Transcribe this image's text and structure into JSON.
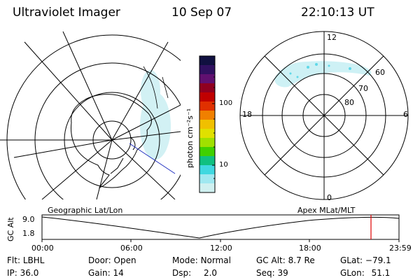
{
  "header": {
    "instrument": "Ultraviolet Imager",
    "date": "10 Sep 07",
    "time": "22:10:13 UT"
  },
  "colorbar": {
    "unit_label": "photon cm⁻²s⁻¹",
    "ticks": [
      "100",
      "10"
    ],
    "colors": [
      "#101040",
      "#301060",
      "#601070",
      "#900020",
      "#c00000",
      "#e03000",
      "#f08000",
      "#f0c000",
      "#e0e000",
      "#a0e000",
      "#40d000",
      "#10c080",
      "#40d8e0",
      "#a0e8f0",
      "#d0f0f0"
    ]
  },
  "right_map": {
    "lat_labels": [
      "60",
      "70",
      "80"
    ],
    "mlt_labels": [
      "12",
      "18",
      "6",
      "0"
    ]
  },
  "timeline": {
    "left_label": "Geographic Lat/Lon",
    "right_label": "Apex MLat/MLT",
    "axis_title": "GC Alt",
    "y_ticks": [
      "9.0",
      "1.8"
    ],
    "x_ticks": [
      "00:00",
      "06:00",
      "12:00",
      "18:00",
      "23:59"
    ],
    "marker_color": "#e00000"
  },
  "info": {
    "flt_label": "Flt:",
    "flt": "LBHL",
    "ip_label": "IP:",
    "ip": "36.0",
    "door_label": "Door:",
    "door": "Open",
    "gain_label": "Gain:",
    "gain": "14",
    "mode_label": "Mode:",
    "mode": "Normal",
    "dsp_label": "Dsp:",
    "dsp": "2.0",
    "gcalt_label": "GC Alt:",
    "gcalt": "8.7 Re",
    "seq_label": "Seq:",
    "seq": "39",
    "glat_label": "GLat:",
    "glat": "−79.1",
    "glon_label": "GLon:",
    "glon": "51.1"
  }
}
